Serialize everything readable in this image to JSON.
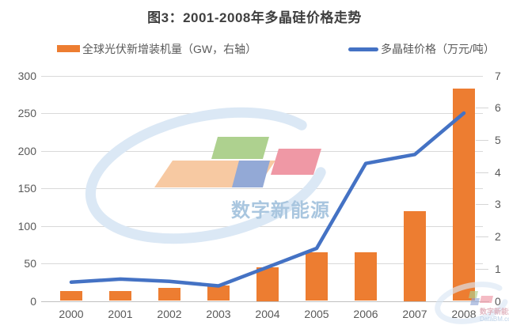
{
  "title": "图3：2001-2008年多晶硅价格走势",
  "legend": [
    {
      "label": "全球光伏新增装机量（GW，右轴）",
      "color": "#ED7D31",
      "marker": "bar-swatch"
    },
    {
      "label": "多晶硅价格（万元/吨）",
      "color": "#4472C4",
      "marker": "line-swatch"
    }
  ],
  "watermark": {
    "main_text": "数字新能源",
    "sub_text": "DataBM.com",
    "logo_colors": {
      "peach": "#f7c9a2",
      "green": "#aed18f",
      "blue": "#93a9d6",
      "pink": "#ef98a5",
      "swoosh": "#dbe8f5"
    }
  },
  "chart_data": {
    "type": "bar",
    "subtype": "bar+line combo",
    "title": "图3：2001-2008年多晶硅价格走势",
    "categories": [
      "2000",
      "2001",
      "2002",
      "2003",
      "2004",
      "2005",
      "2006",
      "2007",
      "2008"
    ],
    "series": [
      {
        "name": "全球光伏新增装机量（GW，右轴）",
        "type": "bar",
        "axis": "right",
        "color": "#ED7D31",
        "values": [
          0.3,
          0.3,
          0.4,
          0.48,
          1.05,
          1.5,
          1.5,
          2.8,
          6.6
        ]
      },
      {
        "name": "多晶硅价格（万元/吨）",
        "type": "line",
        "axis": "left",
        "color": "#4472C4",
        "values": [
          25,
          29,
          26,
          20,
          45,
          70,
          183,
          195,
          250
        ]
      }
    ],
    "left_axis": {
      "min": 0,
      "max": 300,
      "ticks": [
        0,
        50,
        100,
        150,
        200,
        250,
        300
      ]
    },
    "right_axis": {
      "min": 0,
      "max": 7,
      "ticks": [
        0,
        1,
        2,
        3,
        4,
        5,
        6,
        7
      ]
    },
    "grid": true,
    "legend_position": "top"
  }
}
